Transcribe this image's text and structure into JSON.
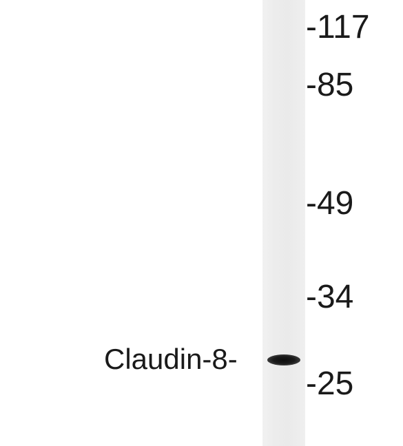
{
  "blot": {
    "protein_label": "Claudin-8-",
    "markers": [
      "-117",
      "-85",
      "-49",
      "-34",
      "-25"
    ]
  }
}
